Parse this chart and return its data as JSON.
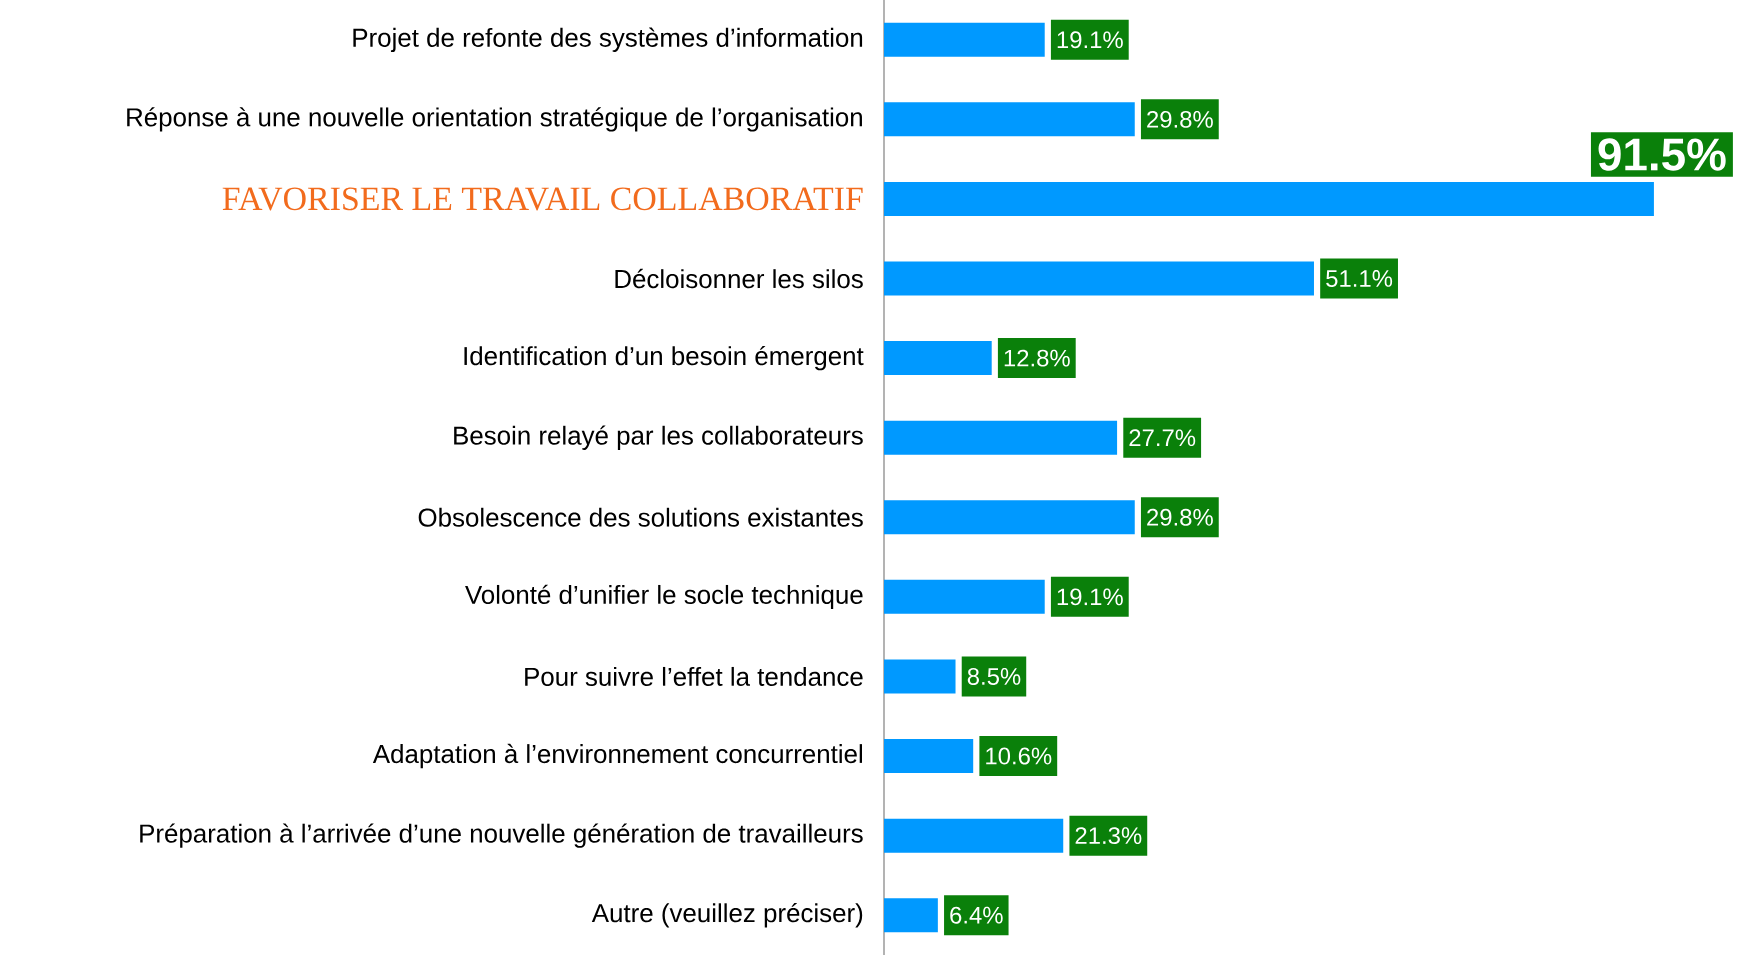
{
  "chart_data": {
    "type": "bar",
    "orientation": "horizontal",
    "categories": [
      "Projet de refonte des systèmes d’information",
      "Réponse à une nouvelle orientation stratégique de l’organisation",
      "FAVORISER LE TRAVAIL COLLABORATIF",
      "Décloisonner les silos",
      "Identification d’un besoin émergent",
      "Besoin relayé par les collaborateurs",
      "Obsolescence des solutions existantes",
      "Volonté d’unifier le socle technique",
      "Pour suivre l’effet la tendance",
      "Adaptation à l’environnement concurrentiel",
      "Préparation à l’arrivée d’une nouvelle génération de travailleurs",
      "Autre (veuillez préciser)"
    ],
    "values": [
      19.1,
      29.8,
      91.5,
      51.1,
      12.8,
      27.7,
      29.8,
      19.1,
      8.5,
      10.6,
      21.3,
      6.4
    ],
    "value_labels": [
      "19.1%",
      "29.8%",
      "91.5%",
      "51.1%",
      "12.8%",
      "27.7%",
      "29.8%",
      "19.1%",
      "8.5%",
      "10.6%",
      "21.3%",
      "6.4%"
    ],
    "color": "#0099ff"
  }
}
